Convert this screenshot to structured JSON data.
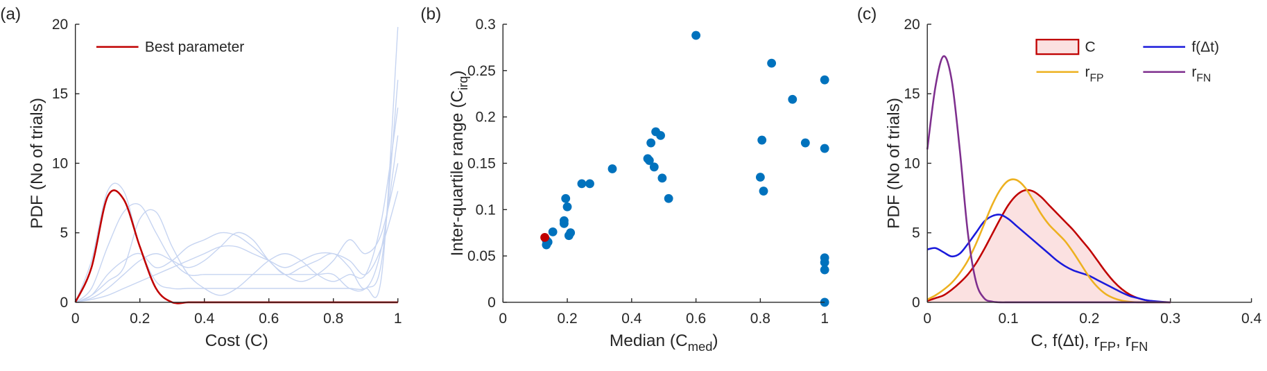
{
  "chart_data": [
    {
      "type": "line",
      "label": "(a)",
      "xlabel": "Cost (C)",
      "ylabel": "PDF (No of trials)",
      "xlim": [
        0,
        1
      ],
      "ylim": [
        0,
        20
      ],
      "xticks": [
        0,
        0.2,
        0.4,
        0.6,
        0.8,
        1
      ],
      "yticks": [
        0,
        5,
        10,
        15,
        20
      ],
      "grid": false,
      "legend": "upper left",
      "x": [
        0,
        0.05,
        0.1,
        0.15,
        0.2,
        0.25,
        0.3,
        0.35,
        0.4,
        0.45,
        0.5,
        0.55,
        0.6,
        0.65,
        0.7,
        0.75,
        0.8,
        0.85,
        0.9,
        0.95,
        1
      ],
      "series": [
        {
          "color": "#c6d4f1",
          "values": [
            0,
            3,
            8,
            8,
            4,
            1.5,
            1,
            1,
            1,
            1,
            1,
            1,
            1,
            1,
            1,
            1,
            1,
            1,
            1,
            2,
            19.8
          ]
        },
        {
          "color": "#c6d4f1",
          "values": [
            0,
            1,
            4,
            6.5,
            7,
            5,
            3,
            2,
            2,
            2,
            2,
            2,
            2,
            2,
            2,
            2,
            2,
            1,
            1,
            3,
            16
          ]
        },
        {
          "color": "#c6d4f1",
          "values": [
            0,
            0.5,
            2,
            3,
            3.5,
            2.5,
            3,
            4,
            4.5,
            5,
            4.8,
            4,
            3,
            2,
            2.5,
            3,
            3.5,
            2.5,
            1,
            4,
            12
          ]
        },
        {
          "color": "#c6d4f1",
          "values": [
            0,
            0.3,
            1,
            2,
            3,
            3.5,
            3,
            2.5,
            3,
            4,
            5,
            4.5,
            3,
            2,
            1.5,
            2,
            3,
            4.5,
            3.5,
            5,
            10
          ]
        },
        {
          "color": "#c6d4f1",
          "values": [
            0,
            0.5,
            1.5,
            2.5,
            6,
            6.5,
            4,
            2,
            1,
            0.5,
            1,
            2,
            3,
            3.5,
            3,
            2,
            1.5,
            2,
            2,
            6,
            14
          ]
        },
        {
          "color": "#c6d4f1",
          "values": [
            0,
            0.2,
            0.5,
            1,
            1.5,
            2,
            2.5,
            3,
            3.5,
            4,
            4,
            3.5,
            3,
            2.5,
            3,
            3.5,
            3.5,
            3,
            2,
            4,
            8
          ]
        },
        {
          "name": "Best parameter",
          "color": "#c00000",
          "values": [
            0,
            2.5,
            7.6,
            7.4,
            4,
            1,
            0,
            0,
            0,
            0,
            0,
            0,
            0,
            0,
            0,
            0,
            0,
            0,
            0,
            0,
            0
          ]
        }
      ]
    },
    {
      "type": "scatter",
      "label": "(b)",
      "xlabel": [
        "Median (C",
        "med",
        ")"
      ],
      "ylabel": [
        "Inter-quartile range (C",
        "irq",
        ")"
      ],
      "xlim": [
        0,
        1
      ],
      "ylim": [
        0,
        0.3
      ],
      "xticks": [
        0,
        0.2,
        0.4,
        0.6,
        0.8,
        1
      ],
      "yticks": [
        0,
        0.05,
        0.1,
        0.15,
        0.2,
        0.25,
        0.3
      ],
      "grid": false,
      "series": [
        {
          "color": "#0072bd",
          "x": [
            0.135,
            0.135,
            0.14,
            0.155,
            0.19,
            0.19,
            0.195,
            0.2,
            0.205,
            0.21,
            0.245,
            0.27,
            0.34,
            0.45,
            0.455,
            0.46,
            0.47,
            0.475,
            0.49,
            0.495,
            0.515,
            0.6,
            0.8,
            0.805,
            0.81,
            0.835,
            0.9,
            0.94,
            1,
            1,
            1,
            1,
            1,
            1
          ],
          "values": [
            0.062,
            0.067,
            0.065,
            0.076,
            0.085,
            0.088,
            0.112,
            0.103,
            0.072,
            0.075,
            0.128,
            0.128,
            0.144,
            0.155,
            0.153,
            0.172,
            0.146,
            0.184,
            0.18,
            0.134,
            0.112,
            0.288,
            0.135,
            0.175,
            0.12,
            0.258,
            0.219,
            0.172,
            0.24,
            0.166,
            0.048,
            0.043,
            0.035,
            0
          ]
        },
        {
          "color": "#c00000",
          "x": [
            0.13
          ],
          "values": [
            0.07
          ]
        }
      ]
    },
    {
      "type": "line",
      "label": "(c)",
      "xlabel": [
        "C, f(Δt), r",
        "FP",
        ", r",
        "FN"
      ],
      "ylabel": "PDF (No of trials)",
      "xlim": [
        0,
        0.4
      ],
      "ylim": [
        0,
        20
      ],
      "xticks": [
        0,
        0.1,
        0.2,
        0.3,
        0.4
      ],
      "yticks": [
        0,
        5,
        10,
        15,
        20
      ],
      "grid": false,
      "legend": "upper right",
      "x": [
        0,
        0.01,
        0.02,
        0.03,
        0.04,
        0.05,
        0.06,
        0.07,
        0.08,
        0.09,
        0.1,
        0.11,
        0.12,
        0.13,
        0.14,
        0.15,
        0.16,
        0.17,
        0.18,
        0.19,
        0.2,
        0.21,
        0.22,
        0.23,
        0.24,
        0.25,
        0.26,
        0.27,
        0.28,
        0.29,
        0.3
      ],
      "series": [
        {
          "name": "C",
          "color": "#c00000",
          "fill": "#fbe1e1",
          "values": [
            0.1,
            0.3,
            0.5,
            0.9,
            1.4,
            2,
            2.8,
            3.8,
            4.9,
            6,
            7,
            7.7,
            8.05,
            8,
            7.6,
            7,
            6.4,
            5.8,
            5.2,
            4.5,
            3.8,
            3,
            2.2,
            1.5,
            0.95,
            0.55,
            0.3,
            0.15,
            0.07,
            0.02,
            0
          ]
        },
        {
          "name": "f(Δt)",
          "color": "#1a1adb",
          "values": [
            3.8,
            3.9,
            3.6,
            3.3,
            3.5,
            4.2,
            5,
            5.8,
            6.2,
            6.3,
            6,
            5.5,
            5,
            4.5,
            4,
            3.5,
            3,
            2.6,
            2.3,
            2.1,
            1.9,
            1.6,
            1.3,
            1,
            0.7,
            0.45,
            0.3,
            0.15,
            0.08,
            0.03,
            0
          ]
        },
        {
          "name": [
            "r",
            "FP"
          ],
          "color": "#edb120",
          "values": [
            0.2,
            0.5,
            0.9,
            1.4,
            2.1,
            3,
            4.2,
            5.6,
            7,
            8.1,
            8.75,
            8.8,
            8.3,
            7.4,
            6.4,
            5.6,
            5,
            4.4,
            3.6,
            2.7,
            1.8,
            1.1,
            0.6,
            0.3,
            0.12,
            0.04,
            0,
            0,
            0,
            0,
            0
          ]
        },
        {
          "name": [
            "r",
            "FN"
          ],
          "color": "#7e2f8e",
          "values": [
            11,
            15.5,
            17.7,
            16,
            11,
            5,
            1.5,
            0.3,
            0.05,
            0,
            0,
            0,
            0,
            0,
            0,
            0,
            0,
            0,
            0,
            0,
            0,
            0,
            0,
            0,
            0,
            0,
            0,
            0,
            0,
            0,
            0
          ]
        }
      ]
    }
  ]
}
